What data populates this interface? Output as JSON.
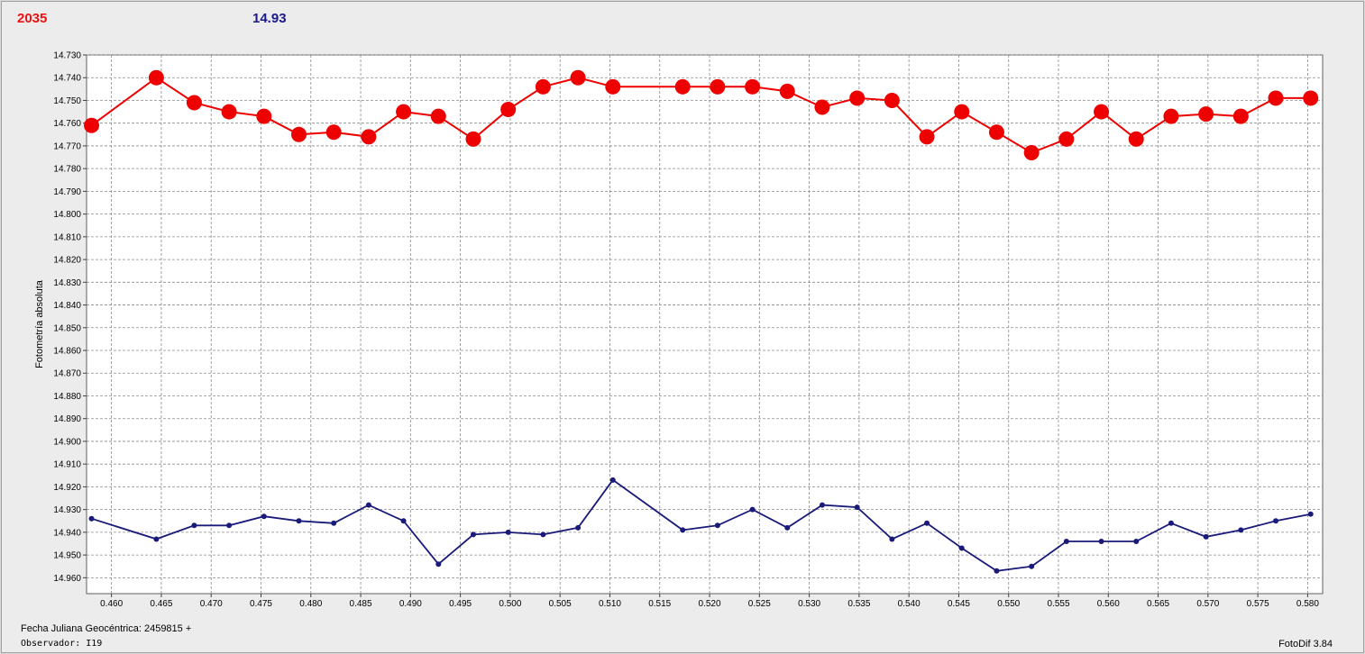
{
  "header": {
    "left_value": "2035",
    "right_value": "14.93",
    "left_color": "#ee1111",
    "right_color": "#1a1a8c"
  },
  "footer": {
    "date_label": "Fecha Juliana Geocéntrica: 2459815 +",
    "observer_label": "Observador: I19",
    "app_version": "FotoDif 3.84"
  },
  "chart_data": {
    "type": "line",
    "ylabel": "Fotometría absoluta",
    "xlabel": "",
    "xlim": [
      0.4575,
      0.5815
    ],
    "ylim": [
      14.73,
      14.967
    ],
    "y_inverted": true,
    "grid": true,
    "x_ticks": [
      "0.460",
      "0.465",
      "0.470",
      "0.475",
      "0.480",
      "0.485",
      "0.490",
      "0.495",
      "0.500",
      "0.505",
      "0.510",
      "0.515",
      "0.520",
      "0.525",
      "0.530",
      "0.535",
      "0.540",
      "0.545",
      "0.550",
      "0.555",
      "0.560",
      "0.565",
      "0.570",
      "0.575",
      "0.580"
    ],
    "y_ticks": [
      "14.730",
      "14.740",
      "14.750",
      "14.760",
      "14.770",
      "14.780",
      "14.790",
      "14.800",
      "14.810",
      "14.820",
      "14.830",
      "14.840",
      "14.850",
      "14.860",
      "14.870",
      "14.880",
      "14.890",
      "14.900",
      "14.910",
      "14.920",
      "14.930",
      "14.940",
      "14.950",
      "14.960"
    ],
    "series": [
      {
        "color": "#ee0000",
        "marker": "large-circle",
        "points": [
          [
            0.458,
            14.761
          ],
          [
            0.4645,
            14.74
          ],
          [
            0.4683,
            14.751
          ],
          [
            0.4718,
            14.755
          ],
          [
            0.4753,
            14.757
          ],
          [
            0.4788,
            14.765
          ],
          [
            0.4823,
            14.764
          ],
          [
            0.4858,
            14.766
          ],
          [
            0.4893,
            14.755
          ],
          [
            0.4928,
            14.757
          ],
          [
            0.4963,
            14.767
          ],
          [
            0.4998,
            14.754
          ],
          [
            0.5033,
            14.744
          ],
          [
            0.5068,
            14.74
          ],
          [
            0.5103,
            14.744
          ],
          [
            0.5173,
            14.744
          ],
          [
            0.5208,
            14.744
          ],
          [
            0.5243,
            14.744
          ],
          [
            0.5278,
            14.746
          ],
          [
            0.5313,
            14.753
          ],
          [
            0.5348,
            14.749
          ],
          [
            0.5383,
            14.75
          ],
          [
            0.5418,
            14.766
          ],
          [
            0.5453,
            14.755
          ],
          [
            0.5488,
            14.764
          ],
          [
            0.5523,
            14.773
          ],
          [
            0.5558,
            14.767
          ],
          [
            0.5593,
            14.755
          ],
          [
            0.5628,
            14.767
          ],
          [
            0.5663,
            14.757
          ],
          [
            0.5698,
            14.756
          ],
          [
            0.5733,
            14.757
          ],
          [
            0.5768,
            14.749
          ],
          [
            0.5803,
            14.749
          ]
        ]
      },
      {
        "color": "#1a1a7a",
        "marker": "small-dot",
        "points": [
          [
            0.458,
            14.934
          ],
          [
            0.4645,
            14.943
          ],
          [
            0.4683,
            14.937
          ],
          [
            0.4718,
            14.937
          ],
          [
            0.4753,
            14.933
          ],
          [
            0.4788,
            14.935
          ],
          [
            0.4823,
            14.936
          ],
          [
            0.4858,
            14.928
          ],
          [
            0.4893,
            14.935
          ],
          [
            0.4928,
            14.954
          ],
          [
            0.4963,
            14.941
          ],
          [
            0.4998,
            14.94
          ],
          [
            0.5033,
            14.941
          ],
          [
            0.5068,
            14.938
          ],
          [
            0.5103,
            14.917
          ],
          [
            0.5173,
            14.939
          ],
          [
            0.5208,
            14.937
          ],
          [
            0.5243,
            14.93
          ],
          [
            0.5278,
            14.938
          ],
          [
            0.5313,
            14.928
          ],
          [
            0.5348,
            14.929
          ],
          [
            0.5383,
            14.943
          ],
          [
            0.5418,
            14.936
          ],
          [
            0.5453,
            14.947
          ],
          [
            0.5488,
            14.957
          ],
          [
            0.5523,
            14.955
          ],
          [
            0.5558,
            14.944
          ],
          [
            0.5593,
            14.944
          ],
          [
            0.5628,
            14.944
          ],
          [
            0.5663,
            14.936
          ],
          [
            0.5698,
            14.942
          ],
          [
            0.5733,
            14.939
          ],
          [
            0.5768,
            14.935
          ],
          [
            0.5803,
            14.932
          ]
        ]
      }
    ]
  }
}
